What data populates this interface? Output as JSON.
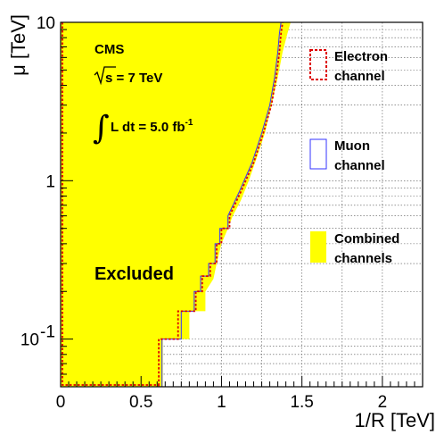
{
  "chart_data": {
    "type": "area",
    "xlabel": "1/R [TeV]",
    "ylabel": "μ [TeV]",
    "xlim": [
      0,
      2.25
    ],
    "ylim": [
      0.05,
      10
    ],
    "yscale": "log",
    "grid": "dashed",
    "x_ticks": [
      {
        "value": 0,
        "label": "0"
      },
      {
        "value": 0.5,
        "label": "0.5"
      },
      {
        "value": 1,
        "label": "1"
      },
      {
        "value": 1.5,
        "label": "1.5"
      },
      {
        "value": 2,
        "label": "2"
      }
    ],
    "y_ticks": [
      {
        "value": 0.1,
        "base": "10",
        "exp": "-1"
      },
      {
        "value": 1,
        "label": "1"
      },
      {
        "value": 10,
        "label": "10"
      }
    ],
    "annotations": {
      "experiment": "CMS",
      "energy_sqrt": "s",
      "energy_rest": " = 7 TeV",
      "lumi_integral": "∫",
      "lumi_text": "L dt = 5.0 fb",
      "lumi_exp": "-1",
      "region": "Excluded"
    },
    "legend": [
      {
        "lines": [
          "Electron",
          "channel"
        ],
        "style": "dotted-red-box"
      },
      {
        "lines": [
          "Muon",
          "channel"
        ],
        "style": "blue-box"
      },
      {
        "lines": [
          "Combined",
          "channels"
        ],
        "style": "yellow-fill"
      }
    ],
    "series": [
      {
        "name": "Combined channels",
        "style": "fill",
        "x": [
          0.635,
          0.635,
          0.8,
          0.8,
          0.9,
          0.9,
          0.95,
          0.97,
          1.0,
          1.04,
          1.07,
          1.12,
          1.17,
          1.22,
          1.27,
          1.31,
          1.35,
          1.38,
          1.41,
          1.43
        ],
        "y": [
          0.05,
          0.1,
          0.1,
          0.15,
          0.15,
          0.2,
          0.24,
          0.3,
          0.4,
          0.5,
          0.6,
          0.75,
          1.0,
          1.4,
          2.0,
          3.0,
          4.5,
          6.5,
          8.5,
          10.0
        ]
      },
      {
        "name": "Electron channel",
        "style": "dotted",
        "x": [
          0.61,
          0.61,
          0.73,
          0.73,
          0.84,
          0.84,
          0.88,
          0.88,
          0.93,
          0.93,
          0.97,
          0.97,
          1.0,
          1.0,
          1.05,
          1.05,
          1.12,
          1.2,
          1.26,
          1.31,
          1.34,
          1.36,
          1.37,
          1.38
        ],
        "y": [
          0.05,
          0.1,
          0.1,
          0.15,
          0.15,
          0.2,
          0.2,
          0.25,
          0.25,
          0.3,
          0.3,
          0.4,
          0.4,
          0.5,
          0.5,
          0.6,
          0.85,
          1.3,
          2.0,
          3.0,
          4.5,
          6.5,
          8.5,
          10.0
        ]
      },
      {
        "name": "Muon channel",
        "style": "solid",
        "x": [
          0.63,
          0.63,
          0.75,
          0.75,
          0.83,
          0.83,
          0.87,
          0.87,
          0.92,
          0.92,
          0.96,
          0.96,
          0.99,
          0.99,
          1.04,
          1.04,
          1.11,
          1.19,
          1.25,
          1.3,
          1.33,
          1.35,
          1.36,
          1.37
        ],
        "y": [
          0.05,
          0.1,
          0.1,
          0.15,
          0.15,
          0.2,
          0.2,
          0.25,
          0.25,
          0.3,
          0.3,
          0.4,
          0.4,
          0.5,
          0.5,
          0.6,
          0.85,
          1.3,
          2.0,
          3.0,
          4.5,
          6.5,
          8.5,
          10.0
        ]
      }
    ],
    "colors": {
      "combined": "#ffff00",
      "electron": "#dd0000",
      "muon": "#3333ff",
      "grid": "#555555",
      "axis": "#000000"
    }
  }
}
